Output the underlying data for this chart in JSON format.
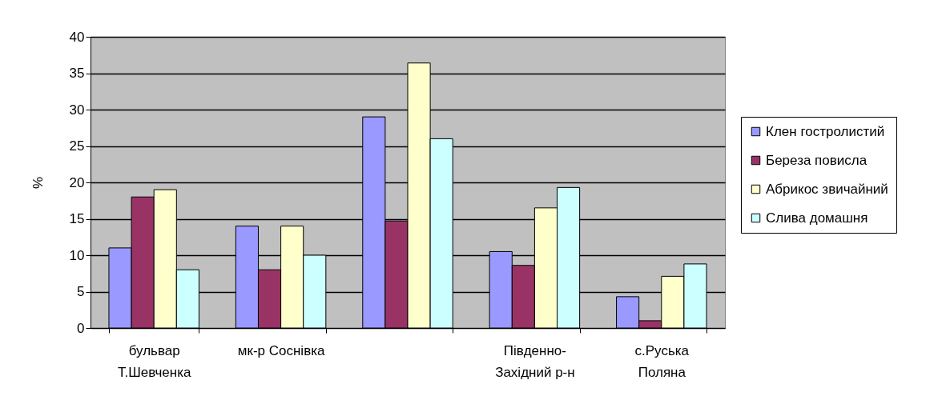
{
  "chart_data": {
    "type": "bar",
    "ylabel": "%",
    "categories": [
      "бульвар Т.Шевченка",
      "мк-р Соснівка",
      null,
      "Південно-Західний р-н",
      "с.Руська Поляна"
    ],
    "series": [
      {
        "name": "Клен гостролистий",
        "color": "#9999ff",
        "values": [
          11,
          14,
          29,
          10.5,
          4.3
        ]
      },
      {
        "name": "Береза повисла",
        "color": "#993366",
        "values": [
          18,
          8,
          14.7,
          8.6,
          1
        ]
      },
      {
        "name": "Абрикос звичайний",
        "color": "#ffffcc",
        "values": [
          19,
          14,
          36.4,
          16.5,
          7.1
        ]
      },
      {
        "name": "Слива домашня",
        "color": "#ccffff",
        "values": [
          8,
          10,
          26,
          19.3,
          8.8
        ]
      }
    ],
    "ylim": [
      0,
      40
    ],
    "yticks": [
      0,
      5,
      10,
      15,
      20,
      25,
      30,
      35,
      40
    ],
    "grid": "y",
    "legend": "right"
  }
}
